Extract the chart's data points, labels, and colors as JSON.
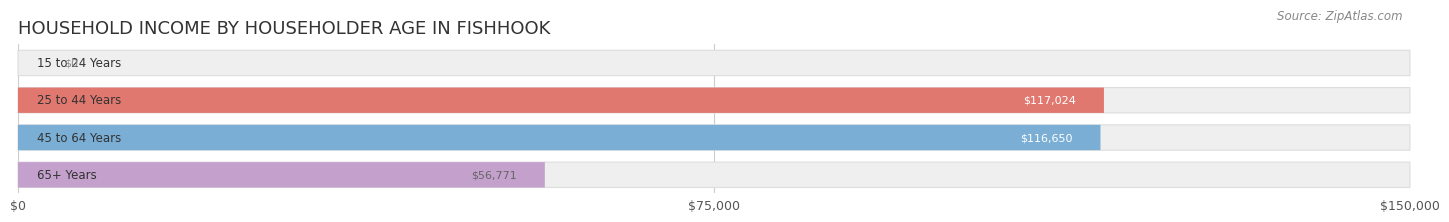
{
  "title": "HOUSEHOLD INCOME BY HOUSEHOLDER AGE IN FISHHOOK",
  "source": "Source: ZipAtlas.com",
  "categories": [
    "15 to 24 Years",
    "25 to 44 Years",
    "45 to 64 Years",
    "65+ Years"
  ],
  "values": [
    0,
    117024,
    116650,
    56771
  ],
  "bar_colors": [
    "#f0c080",
    "#e07870",
    "#7aaed4",
    "#c4a0cc"
  ],
  "label_colors": [
    "#888888",
    "#ffffff",
    "#ffffff",
    "#666666"
  ],
  "label_texts": [
    "$0",
    "$117,024",
    "$116,650",
    "$56,771"
  ],
  "x_ticks": [
    0,
    75000,
    150000
  ],
  "x_tick_labels": [
    "$0",
    "$75,000",
    "$150,000"
  ],
  "x_max": 150000,
  "bg_color": "#ffffff",
  "pill_bg_color": "#efefef",
  "pill_border_color": "#dddddd",
  "title_fontsize": 13,
  "source_fontsize": 8.5,
  "tick_fontsize": 9,
  "label_fontsize": 8,
  "cat_fontsize": 8.5
}
